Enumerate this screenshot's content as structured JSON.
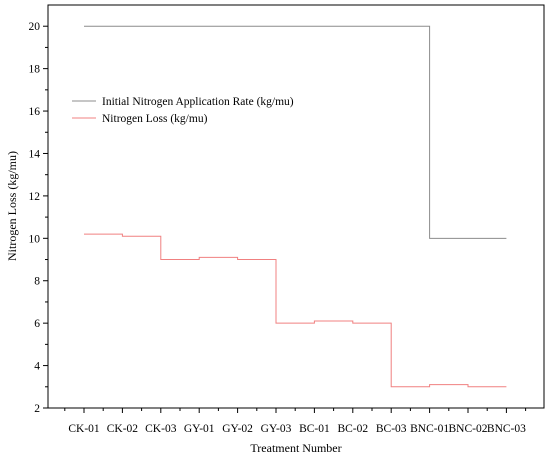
{
  "chart_data": {
    "type": "line",
    "step": true,
    "categories": [
      "CK-01",
      "CK-02",
      "CK-03",
      "GY-01",
      "GY-02",
      "GY-03",
      "BC-01",
      "BC-02",
      "BC-03",
      "BNC-01",
      "BNC-02",
      "BNC-03"
    ],
    "series": [
      {
        "name": "Initial Nitrogen Application Rate (kg/mu)",
        "color": "#8c8c8c",
        "values": [
          20,
          20,
          20,
          20,
          20,
          20,
          20,
          20,
          20,
          10,
          10,
          10
        ]
      },
      {
        "name": "Nitrogen Loss (kg/mu)",
        "color": "#f08080",
        "values": [
          10.2,
          10.1,
          9.0,
          9.1,
          9.0,
          6.0,
          6.1,
          6.0,
          3.0,
          3.1,
          3.0,
          3.0
        ]
      }
    ],
    "xlabel": "Treatment Number",
    "ylabel": "Nitrogen Loss (kg/mu)",
    "ylim": [
      2,
      21
    ],
    "yticks": [
      "2",
      "4",
      "6",
      "8",
      "10",
      "12",
      "14",
      "16",
      "18",
      "20"
    ],
    "grid": false,
    "legend_position": "top-left"
  }
}
